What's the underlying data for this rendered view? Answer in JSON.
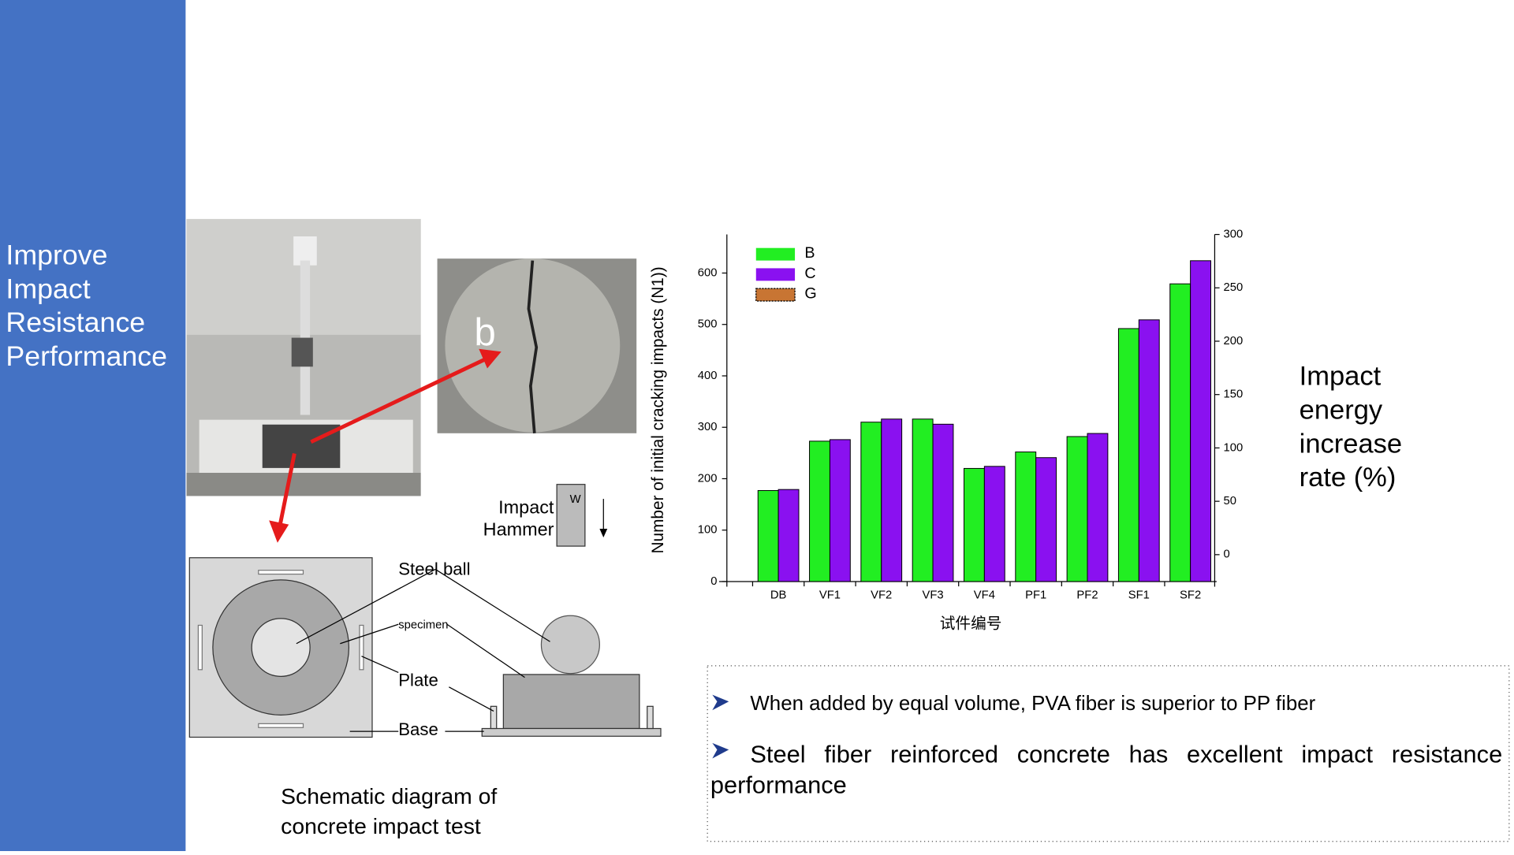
{
  "sidebar": {
    "title": "Improve Impact Resistance Performance"
  },
  "photo": {
    "label": "b"
  },
  "diagram": {
    "hammer_label": "Impact Hammer",
    "hammer_mark": "W",
    "steel_ball": "Steel ball",
    "specimen": "specimen",
    "plate": "Plate",
    "base": "Base",
    "caption": "Schematic diagram of concrete impact test"
  },
  "chart_data": {
    "type": "bar",
    "categories": [
      "DB",
      "VF1",
      "VF2",
      "VF3",
      "VF4",
      "PF1",
      "PF2",
      "SF1",
      "SF2"
    ],
    "series": [
      {
        "name": "B",
        "color": "#22ee22",
        "values": [
          177,
          273,
          310,
          316,
          220,
          252,
          282,
          492,
          579
        ]
      },
      {
        "name": "C",
        "color": "#8a11f0",
        "values": [
          179,
          276,
          316,
          306,
          224,
          241,
          288,
          509,
          624
        ]
      },
      {
        "name": "G",
        "color": "#c87533",
        "axis": "y2",
        "values": [
          null,
          null,
          null,
          null,
          null,
          null,
          null,
          null,
          null
        ]
      }
    ],
    "xlabel": "试件编号",
    "ylabel": "Number of initial cracking impacts (N1))",
    "y2label": "Impact energy increase rate (%)",
    "ylim": [
      -10,
      675
    ],
    "yticks": [
      0,
      100,
      200,
      300,
      400,
      500,
      600
    ],
    "y2lim": [
      -30,
      300
    ],
    "y2ticks": [
      0,
      50,
      100,
      150,
      200,
      250,
      300
    ],
    "legend": "top-left"
  },
  "bullets": [
    "When added by equal volume, PVA fiber is superior to PP fiber",
    "Steel fiber reinforced concrete has excellent impact resistance performance"
  ]
}
